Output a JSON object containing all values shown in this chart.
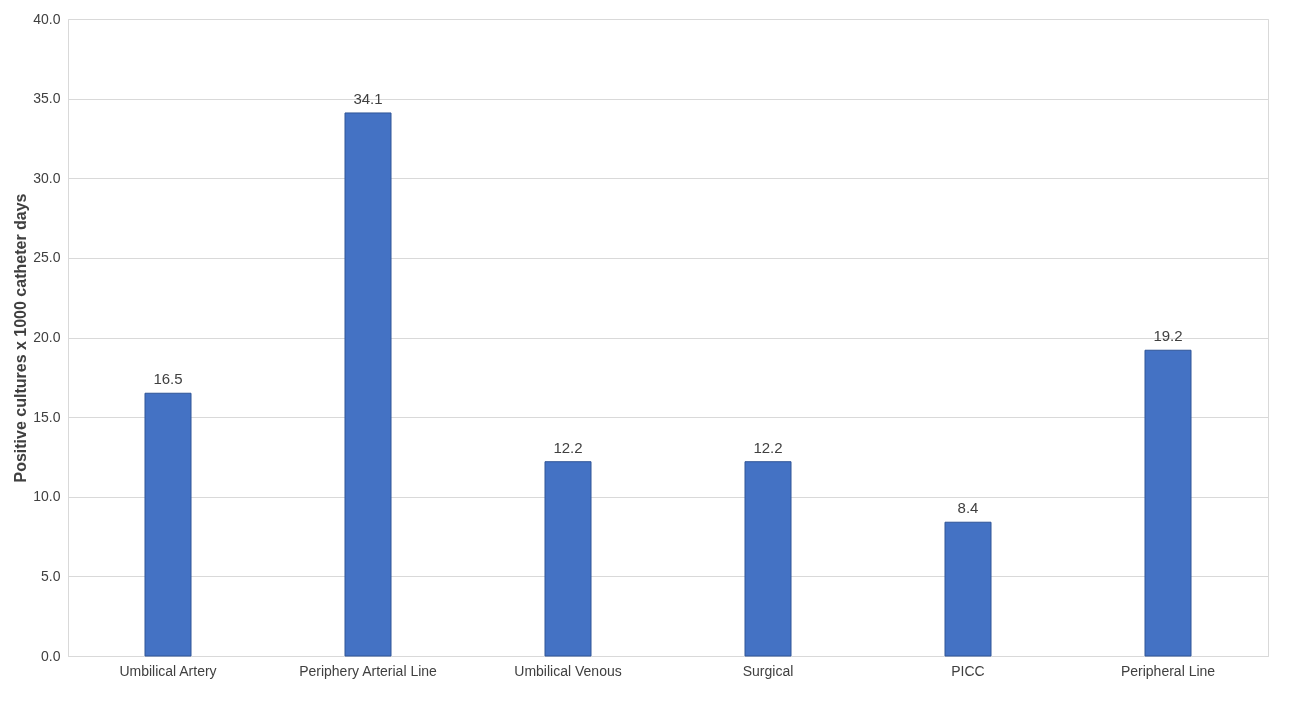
{
  "chart_data": {
    "type": "bar",
    "ylabel": "Positive cultures x 1000 catheter days",
    "categories": [
      "Umbilical Artery",
      "Periphery Arterial Line",
      "Umbilical Venous",
      "Surgical",
      "PICC",
      "Peripheral Line"
    ],
    "values": [
      16.5,
      34.1,
      12.2,
      12.2,
      8.4,
      19.2
    ],
    "color": "#4472c4",
    "ylim": [
      0,
      40
    ],
    "yticks": [
      {
        "value": 0,
        "label": "0.0"
      },
      {
        "value": 5,
        "label": "5.0"
      },
      {
        "value": 10,
        "label": "10.0"
      },
      {
        "value": 15,
        "label": "15.0"
      },
      {
        "value": 20,
        "label": "20.0"
      },
      {
        "value": 25,
        "label": "25.0"
      },
      {
        "value": 30,
        "label": "30.0"
      },
      {
        "value": 35,
        "label": "35.0"
      },
      {
        "value": 40,
        "label": "40.0"
      }
    ],
    "grid": "y",
    "data_labels": true
  }
}
